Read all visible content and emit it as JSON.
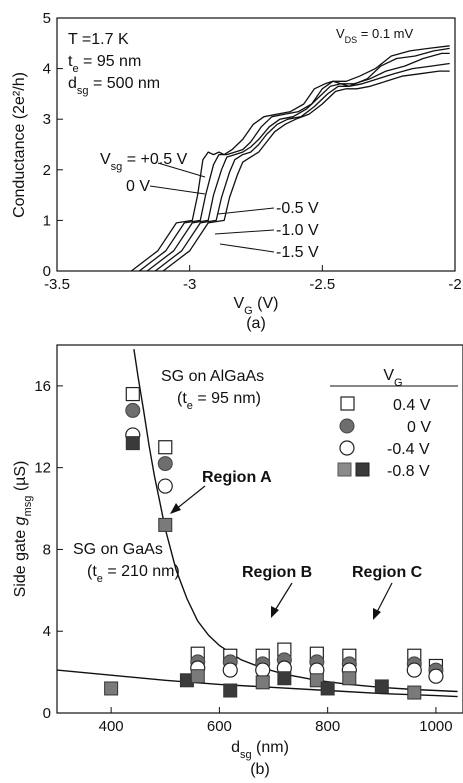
{
  "chart_data": [
    {
      "type": "line",
      "panel_label": "(a)",
      "xlabel": "V",
      "xlabel_sub": "G",
      "xlabel_unit": " (V)",
      "ylabel": "Conductance (2e²/h)",
      "xlim": [
        -3.5,
        -2.0
      ],
      "ylim": [
        0,
        5
      ],
      "xticks": [
        -3.5,
        -3,
        -2.5,
        -2
      ],
      "xtick_labels": [
        "-3.5",
        "-3",
        "-2.5",
        "-2"
      ],
      "yticks": [
        0,
        1,
        2,
        3,
        4,
        5
      ],
      "ytick_labels": [
        "0",
        "1",
        "2",
        "3",
        "4",
        "5"
      ],
      "annotations": {
        "temperature": "T =1.7 K",
        "thickness": {
          "main": "t",
          "sub": "e",
          "rest": " = 95 nm"
        },
        "distance": {
          "main": "d",
          "sub": "sg",
          "rest": " = 500 nm"
        },
        "vds": {
          "main": "V",
          "sub": "DS",
          "rest": " = 0.1 mV"
        }
      },
      "series": [
        {
          "name": "V_sg = +0.5 V",
          "label_main": "V",
          "label_sub": "sg",
          "label_rest": " = +0.5 V",
          "x": [
            -3.22,
            -3.12,
            -3.05,
            -2.99,
            -2.97,
            -2.95,
            -2.93,
            -2.91,
            -2.89,
            -2.87,
            -2.84,
            -2.8,
            -2.76,
            -2.72,
            -2.67,
            -2.62,
            -2.57,
            -2.53,
            -2.49,
            -2.46,
            -2.4,
            -2.33,
            -2.28,
            -2.22,
            -2.15,
            -2.08,
            -2.02
          ],
          "y": [
            0,
            0.4,
            0.95,
            1.0,
            1.5,
            2.2,
            2.35,
            2.3,
            2.35,
            2.3,
            2.4,
            2.6,
            2.9,
            3.05,
            3.1,
            3.15,
            3.3,
            3.6,
            3.7,
            3.75,
            3.65,
            3.8,
            4.05,
            4.2,
            4.25,
            4.35,
            4.4
          ]
        },
        {
          "name": "0 V",
          "label_main": "0 V",
          "label_sub": "",
          "label_rest": "",
          "x": [
            -3.19,
            -3.09,
            -3.02,
            -2.96,
            -2.94,
            -2.91,
            -2.89,
            -2.86,
            -2.83,
            -2.8,
            -2.77,
            -2.73,
            -2.69,
            -2.64,
            -2.59,
            -2.54,
            -2.5,
            -2.46,
            -2.41,
            -2.36,
            -2.3,
            -2.24,
            -2.17,
            -2.1,
            -2.02
          ],
          "y": [
            0,
            0.4,
            0.95,
            1.0,
            1.5,
            2.1,
            2.3,
            2.3,
            2.35,
            2.4,
            2.55,
            2.85,
            3.05,
            3.1,
            3.15,
            3.3,
            3.6,
            3.75,
            3.75,
            3.85,
            4.0,
            4.25,
            4.35,
            4.4,
            4.45
          ]
        },
        {
          "name": "-0.5 V",
          "label_main": "-0.5 V",
          "label_sub": "",
          "label_rest": "",
          "x": [
            -3.16,
            -3.06,
            -2.99,
            -2.93,
            -2.91,
            -2.88,
            -2.86,
            -2.83,
            -2.8,
            -2.77,
            -2.74,
            -2.7,
            -2.66,
            -2.61,
            -2.56,
            -2.51,
            -2.47,
            -2.43,
            -2.38,
            -2.32,
            -2.26,
            -2.19,
            -2.12,
            -2.05,
            -2.02
          ],
          "y": [
            0,
            0.4,
            0.95,
            1.0,
            1.5,
            2.0,
            2.25,
            2.3,
            2.35,
            2.45,
            2.6,
            2.85,
            3.0,
            3.05,
            3.2,
            3.45,
            3.65,
            3.7,
            3.7,
            3.8,
            3.95,
            4.05,
            4.2,
            4.3,
            4.3
          ]
        },
        {
          "name": "-1.0 V",
          "label_main": "-1.0 V",
          "label_sub": "",
          "label_rest": "",
          "x": [
            -3.13,
            -3.03,
            -2.96,
            -2.9,
            -2.88,
            -2.85,
            -2.83,
            -2.8,
            -2.77,
            -2.74,
            -2.71,
            -2.67,
            -2.63,
            -2.58,
            -2.53,
            -2.48,
            -2.44,
            -2.4,
            -2.35,
            -2.29,
            -2.23,
            -2.16,
            -2.09,
            -2.02
          ],
          "y": [
            0,
            0.4,
            0.95,
            1.0,
            1.45,
            1.95,
            2.2,
            2.3,
            2.35,
            2.5,
            2.7,
            2.9,
            3.0,
            3.05,
            3.25,
            3.5,
            3.65,
            3.65,
            3.7,
            3.8,
            3.9,
            4.0,
            4.05,
            4.1
          ]
        },
        {
          "name": "-1.5 V",
          "label_main": "-1.5 V",
          "label_sub": "",
          "label_rest": "",
          "x": [
            -3.1,
            -3.0,
            -2.93,
            -2.87,
            -2.85,
            -2.82,
            -2.8,
            -2.77,
            -2.74,
            -2.71,
            -2.68,
            -2.64,
            -2.6,
            -2.55,
            -2.5,
            -2.45,
            -2.41,
            -2.37,
            -2.32,
            -2.26,
            -2.2,
            -2.13,
            -2.06,
            -2.02
          ],
          "y": [
            0,
            0.4,
            0.95,
            1.0,
            1.45,
            1.9,
            2.15,
            2.25,
            2.35,
            2.55,
            2.75,
            2.9,
            3.0,
            3.1,
            3.3,
            3.55,
            3.6,
            3.6,
            3.65,
            3.75,
            3.85,
            3.9,
            3.95,
            3.95
          ]
        }
      ]
    },
    {
      "type": "scatter",
      "panel_label": "(b)",
      "xlabel": "d",
      "xlabel_sub": "sg",
      "xlabel_unit": " (nm)",
      "ylabel": "Side gate ",
      "ylabel_g": "g",
      "ylabel_sub": "msg",
      "ylabel_unit": " (µS)",
      "xlim": [
        300,
        1050
      ],
      "ylim": [
        0,
        18
      ],
      "xticks": [
        400,
        600,
        800,
        1000
      ],
      "xtick_labels": [
        "400",
        "600",
        "800",
        "1000"
      ],
      "yticks": [
        0,
        4,
        8,
        12,
        16
      ],
      "ytick_labels": [
        "0",
        "4",
        "8",
        "12",
        "16"
      ],
      "legend": {
        "title_main": "V",
        "title_sub": "G",
        "position": "top-right",
        "entries": [
          {
            "label": "0.4 V",
            "marker": "open-square"
          },
          {
            "label": "0 V",
            "marker": "shaded-circle"
          },
          {
            "label": "-0.4 V",
            "marker": "open-circle"
          },
          {
            "label": "-0.8 V",
            "marker": "shaded-square"
          }
        ]
      },
      "annotations": {
        "sg_algaas": "SG on AlGaAs",
        "sg_algaas_te": {
          "main": "(t",
          "sub": "e",
          "rest": " = 95 nm)"
        },
        "sg_gaas": "SG on GaAs",
        "sg_gaas_te": {
          "main": "(t",
          "sub": "e",
          "rest": " = 210 nm)"
        },
        "region_a": "Region A",
        "region_b": "Region B",
        "region_c": "Region C"
      },
      "series": [
        {
          "name": "0.4 V",
          "marker": "open-square",
          "x": [
            440,
            500,
            560,
            620,
            680,
            720,
            780,
            840,
            960,
            1000
          ],
          "y": [
            15.6,
            13.0,
            2.9,
            2.8,
            2.8,
            3.1,
            2.9,
            2.8,
            2.8,
            2.3
          ]
        },
        {
          "name": "0 V",
          "marker": "shaded-circle",
          "x": [
            440,
            500,
            560,
            620,
            680,
            720,
            780,
            840,
            960,
            1000
          ],
          "y": [
            14.8,
            12.2,
            2.5,
            2.5,
            2.4,
            2.6,
            2.5,
            2.4,
            2.4,
            2.1
          ]
        },
        {
          "name": "-0.4 V",
          "marker": "open-circle",
          "x": [
            440,
            500,
            560,
            620,
            680,
            720,
            780,
            840,
            960,
            1000
          ],
          "y": [
            13.6,
            11.1,
            2.2,
            2.1,
            2.1,
            2.2,
            2.1,
            2.1,
            2.1,
            1.8
          ]
        },
        {
          "name": "-0.8 V",
          "marker": "shaded-square",
          "x": [
            400,
            440,
            500,
            540,
            560,
            620,
            680,
            720,
            780,
            800,
            840,
            900,
            960
          ],
          "y": [
            1.2,
            13.2,
            9.2,
            1.6,
            1.8,
            1.1,
            1.5,
            1.7,
            1.6,
            1.2,
            1.7,
            1.3,
            1.0
          ]
        }
      ],
      "fit_curves": [
        {
          "name": "SG on AlGaAs fit",
          "x": [
            442,
            450,
            460,
            470,
            480,
            490,
            500,
            510,
            520,
            540,
            560,
            580,
            600,
            640,
            680,
            720,
            780,
            840,
            900,
            960,
            1040
          ],
          "y": [
            17.8,
            16.4,
            14.8,
            13.1,
            11.6,
            10.3,
            9.0,
            8.0,
            7.0,
            5.6,
            4.5,
            3.8,
            3.3,
            2.6,
            2.2,
            1.9,
            1.6,
            1.4,
            1.25,
            1.15,
            1.05
          ]
        },
        {
          "name": "SG on GaAs fit",
          "x": [
            300,
            400,
            500,
            600,
            700,
            800,
            900,
            1000,
            1040
          ],
          "y": [
            2.1,
            1.85,
            1.6,
            1.4,
            1.25,
            1.1,
            0.95,
            0.85,
            0.8
          ]
        }
      ]
    }
  ]
}
